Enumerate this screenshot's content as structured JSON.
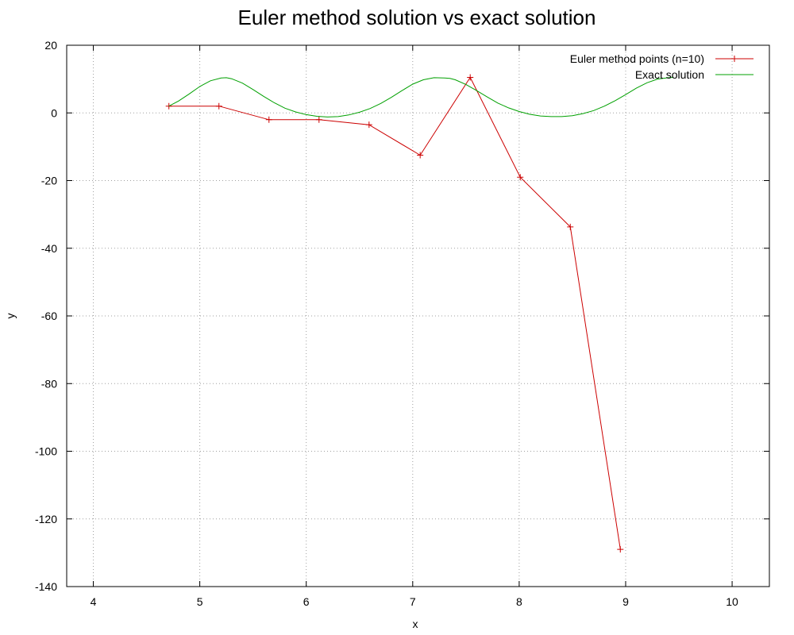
{
  "chart_data": {
    "type": "line",
    "title": "Euler method solution vs exact solution",
    "xlabel": "x",
    "ylabel": "y",
    "xlim": [
      3.75,
      10.35
    ],
    "ylim": [
      -140,
      20
    ],
    "xticks": [
      4,
      5,
      6,
      7,
      8,
      9,
      10
    ],
    "yticks": [
      20,
      0,
      -20,
      -40,
      -60,
      -80,
      -100,
      -120,
      -140
    ],
    "grid": true,
    "legend_position": "top-right",
    "series": [
      {
        "name": "Euler method points (n=10)",
        "color": "#cc0000",
        "marker": "plus",
        "x": [
          4.71,
          5.18,
          5.65,
          6.12,
          6.59,
          7.07,
          7.54,
          8.01,
          8.48,
          8.95
        ],
        "y": [
          2,
          2,
          -2,
          -2,
          -3.5,
          -12.5,
          10.5,
          -19,
          -33.7,
          -129
        ]
      },
      {
        "name": "Exact solution",
        "color": "#00a000",
        "marker": "none",
        "x": [
          4.71,
          4.8,
          4.9,
          5.0,
          5.1,
          5.2,
          5.25,
          5.3,
          5.4,
          5.5,
          5.6,
          5.7,
          5.8,
          5.9,
          6.0,
          6.1,
          6.2,
          6.3,
          6.4,
          6.5,
          6.6,
          6.7,
          6.8,
          6.9,
          7.0,
          7.1,
          7.2,
          7.3,
          7.35,
          7.4,
          7.5,
          7.6,
          7.7,
          7.8,
          7.9,
          8.0,
          8.1,
          8.2,
          8.3,
          8.4,
          8.5,
          8.6,
          8.7,
          8.8,
          8.9,
          9.0,
          9.1,
          9.2,
          9.3,
          9.4,
          9.45
        ],
        "y": [
          2,
          3.5,
          5.6,
          7.8,
          9.5,
          10.3,
          10.4,
          10.1,
          8.8,
          6.9,
          4.9,
          3.0,
          1.4,
          0.3,
          -0.5,
          -1.0,
          -1.2,
          -1.1,
          -0.6,
          0.2,
          1.3,
          2.8,
          4.6,
          6.6,
          8.5,
          9.8,
          10.4,
          10.3,
          10.2,
          9.8,
          8.4,
          6.6,
          4.7,
          2.9,
          1.5,
          0.4,
          -0.4,
          -0.9,
          -1.1,
          -1.1,
          -0.8,
          -0.2,
          0.7,
          2.0,
          3.6,
          5.4,
          7.3,
          8.9,
          10.0,
          10.4,
          10.5
        ]
      }
    ]
  }
}
